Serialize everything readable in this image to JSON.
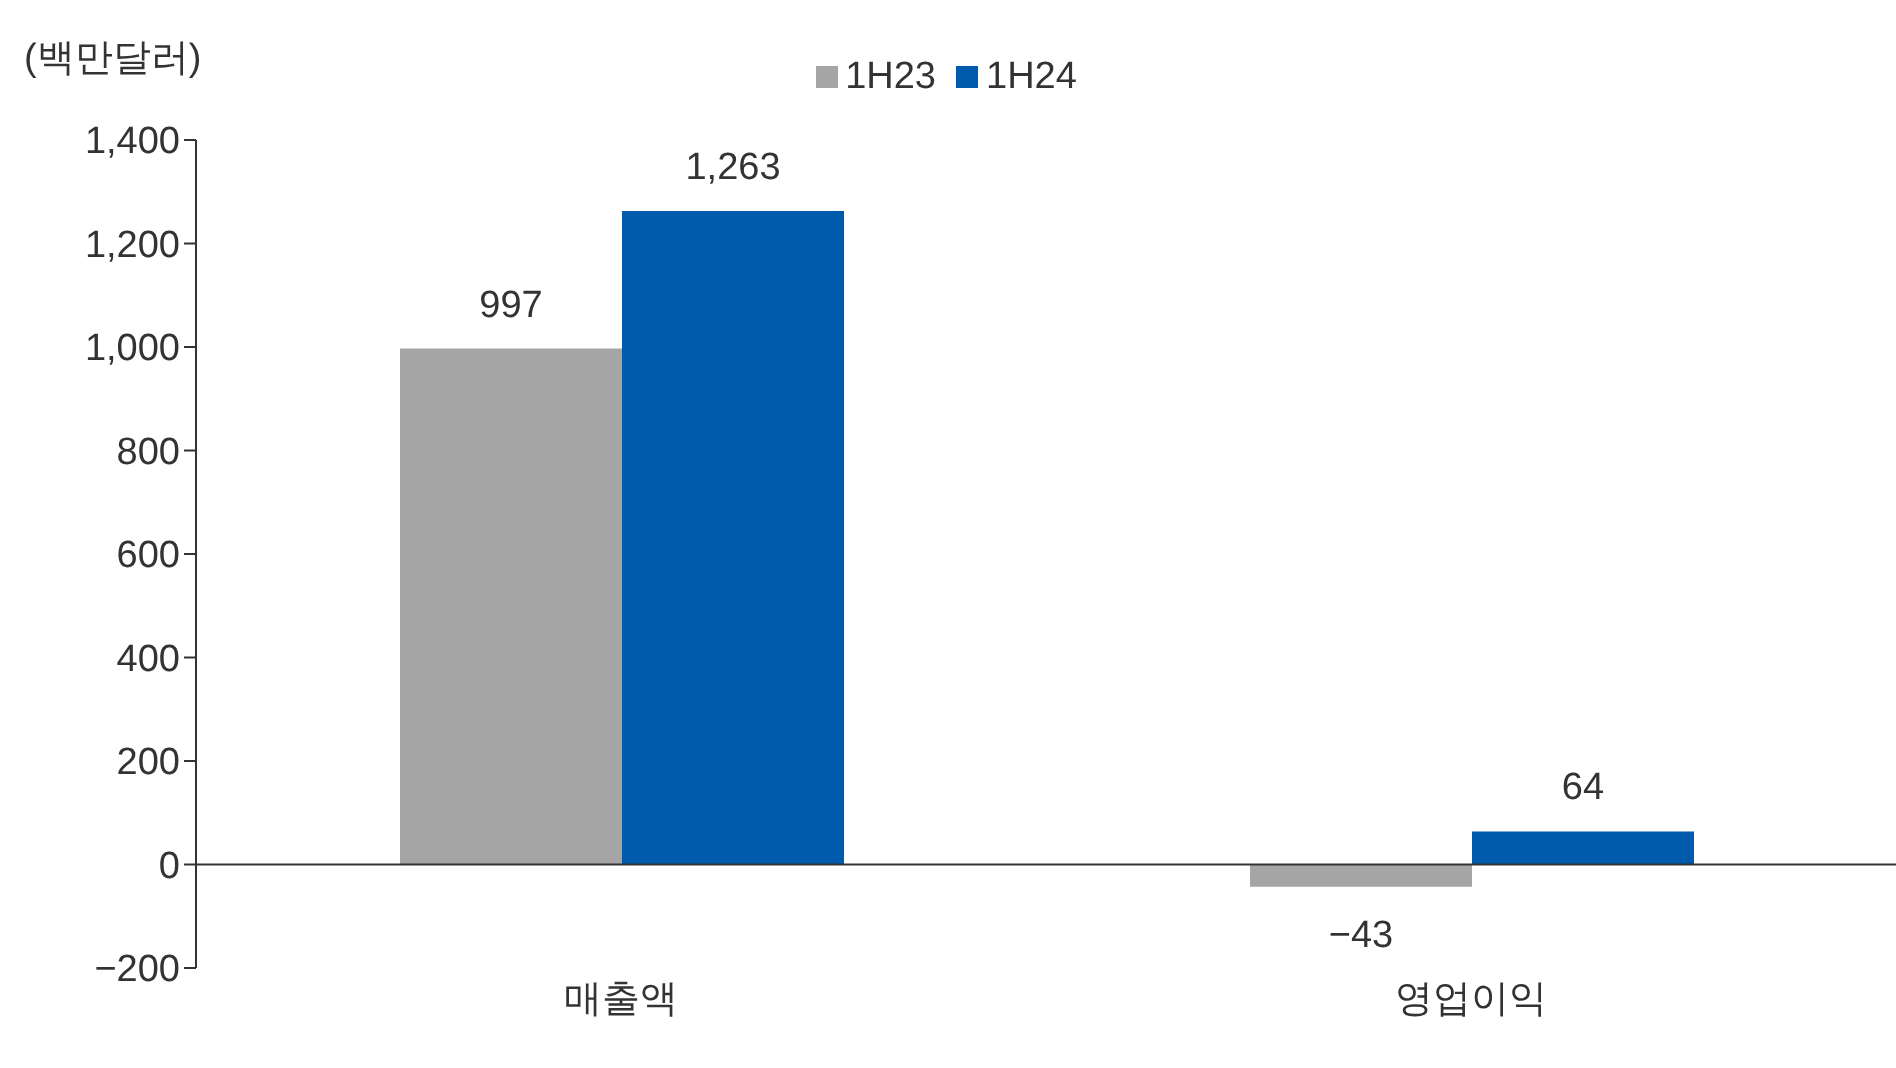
{
  "chart_data": {
    "type": "bar",
    "ylabel": "(백만달러)",
    "categories": [
      "매출액",
      "영업이익"
    ],
    "series": [
      {
        "name": "1H23",
        "color": "#a5a5a5",
        "values": [
          997,
          -43
        ],
        "value_labels": [
          "997",
          "−43"
        ]
      },
      {
        "name": "1H24",
        "color": "#005bac",
        "values": [
          1263,
          64
        ],
        "value_labels": [
          "1,263",
          "64"
        ]
      }
    ],
    "ylim": [
      -200,
      1400
    ],
    "yticks": [
      {
        "value": -200,
        "label": "−200"
      },
      0,
      200,
      400,
      600,
      800,
      {
        "value": 1000,
        "label": "1,000"
      },
      {
        "value": 1200,
        "label": "1,200"
      },
      {
        "value": 1400,
        "label": "1,400"
      }
    ],
    "legend": "top"
  }
}
